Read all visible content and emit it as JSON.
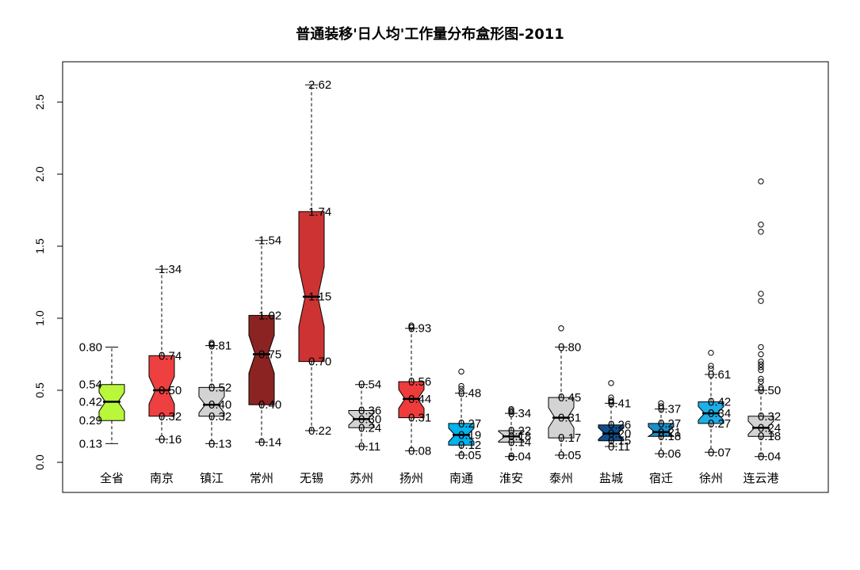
{
  "chart_data": {
    "type": "boxplot",
    "title": "普通装移'日人均'工作量分布盒形图-2011",
    "xlabel": "",
    "ylabel": "",
    "ylim": [
      -0.2,
      2.8
    ],
    "yticks": [
      "0.0",
      "0.5",
      "1.0",
      "1.5",
      "2.0",
      "2.5"
    ],
    "ytick_values": [
      0,
      0.5,
      1.0,
      1.5,
      2.0,
      2.5
    ],
    "notched": true,
    "categories": [
      "全省",
      "南京",
      "镇江",
      "常州",
      "无锡",
      "苏州",
      "扬州",
      "南通",
      "淮安",
      "泰州",
      "盐城",
      "宿迁",
      "徐州",
      "连云港"
    ],
    "boxes": [
      {
        "name": "全省",
        "color": "#b8f73a",
        "min": 0.13,
        "q1": 0.29,
        "median": 0.42,
        "q3": 0.54,
        "max": 0.8,
        "outliers": [],
        "labels": [
          "0.80",
          "0.54",
          "0.42",
          "0.29",
          "0.13"
        ],
        "label_side": "left"
      },
      {
        "name": "南京",
        "color": "#ee4040",
        "min": 0.16,
        "q1": 0.32,
        "median": 0.5,
        "q3": 0.74,
        "max": 1.34,
        "outliers": [],
        "labels": [
          "1.34",
          "0.74",
          "0.50",
          "0.32",
          "0.16"
        ],
        "label_side": "right"
      },
      {
        "name": "镇江",
        "color": "#d3d3d3",
        "min": 0.13,
        "q1": 0.32,
        "median": 0.4,
        "q3": 0.52,
        "max": 0.81,
        "outliers": [
          0.82,
          0.83
        ],
        "labels": [
          "0.81",
          "0.52",
          "0.40",
          "0.32",
          "0.13"
        ],
        "label_side": "right"
      },
      {
        "name": "常州",
        "color": "#8b2323",
        "min": 0.14,
        "q1": 0.4,
        "median": 0.75,
        "q3": 1.02,
        "max": 1.54,
        "outliers": [],
        "labels": [
          "1.54",
          "1.02",
          "0.75",
          "0.40",
          "0.14"
        ],
        "label_side": "right"
      },
      {
        "name": "无锡",
        "color": "#cd3333",
        "min": 0.22,
        "q1": 0.7,
        "median": 1.15,
        "q3": 1.74,
        "max": 2.62,
        "outliers": [],
        "labels": [
          "2.62",
          "1.74",
          "1.15",
          "0.70",
          "0.22"
        ],
        "label_side": "right"
      },
      {
        "name": "苏州",
        "color": "#d3d3d3",
        "min": 0.11,
        "q1": 0.24,
        "median": 0.3,
        "q3": 0.36,
        "max": 0.54,
        "outliers": [],
        "labels": [
          "0.54",
          "0.36",
          "0.30",
          "0.24",
          "0.11"
        ],
        "label_side": "right"
      },
      {
        "name": "扬州",
        "color": "#ee3b3b",
        "min": 0.08,
        "q1": 0.31,
        "median": 0.44,
        "q3": 0.56,
        "max": 0.93,
        "outliers": [
          0.94,
          0.95
        ],
        "labels": [
          "0.93",
          "0.56",
          "0.44",
          "0.31",
          "0.08"
        ],
        "label_side": "right"
      },
      {
        "name": "南通",
        "color": "#00b2ee",
        "min": 0.05,
        "q1": 0.12,
        "median": 0.19,
        "q3": 0.27,
        "max": 0.48,
        "outliers": [
          0.51,
          0.53,
          0.63
        ],
        "labels": [
          "0.48",
          "0.27",
          "0.19",
          "0.12",
          "0.05"
        ],
        "label_side": "right"
      },
      {
        "name": "淮安",
        "color": "#d3d3d3",
        "min": 0.04,
        "q1": 0.14,
        "median": 0.18,
        "q3": 0.22,
        "max": 0.34,
        "outliers": [
          0.35,
          0.36,
          0.37,
          0.03
        ],
        "labels": [
          "0.34",
          "0.22",
          "0.18",
          "0.14",
          "0.04"
        ],
        "label_side": "right"
      },
      {
        "name": "泰州",
        "color": "#d3d3d3",
        "min": 0.05,
        "q1": 0.17,
        "median": 0.31,
        "q3": 0.45,
        "max": 0.8,
        "outliers": [
          0.93
        ],
        "labels": [
          "0.80",
          "0.45",
          "0.31",
          "0.17",
          "0.05"
        ],
        "label_side": "right"
      },
      {
        "name": "盐城",
        "color": "#104e8b",
        "min": 0.11,
        "q1": 0.15,
        "median": 0.2,
        "q3": 0.26,
        "max": 0.41,
        "outliers": [
          0.42,
          0.43,
          0.45,
          0.55
        ],
        "labels": [
          "0.41",
          "0.26",
          "0.20",
          "0.15",
          "0.11"
        ],
        "label_side": "right"
      },
      {
        "name": "宿迁",
        "color": "#1a8fc9",
        "min": 0.06,
        "q1": 0.18,
        "median": 0.21,
        "q3": 0.27,
        "max": 0.37,
        "outliers": [
          0.39,
          0.41
        ],
        "labels": [
          "0.37",
          "0.27",
          "0.21",
          "0.18",
          "0.06"
        ],
        "label_side": "right"
      },
      {
        "name": "徐州",
        "color": "#1eaee8",
        "min": 0.07,
        "q1": 0.27,
        "median": 0.34,
        "q3": 0.42,
        "max": 0.61,
        "outliers": [
          0.65,
          0.67,
          0.76
        ],
        "labels": [
          "0.61",
          "0.42",
          "0.34",
          "0.27",
          "0.07"
        ],
        "label_side": "right"
      },
      {
        "name": "连云港",
        "color": "#d3d3d3",
        "min": 0.04,
        "q1": 0.18,
        "median": 0.24,
        "q3": 0.32,
        "max": 0.5,
        "outliers": [
          0.52,
          0.56,
          0.58,
          0.64,
          0.66,
          0.68,
          0.7,
          0.75,
          0.8,
          1.12,
          1.17,
          1.6,
          1.65,
          1.95
        ],
        "labels": [
          "0.50",
          "0.32",
          "0.24",
          "0.18",
          "0.04"
        ],
        "label_side": "right"
      }
    ]
  }
}
